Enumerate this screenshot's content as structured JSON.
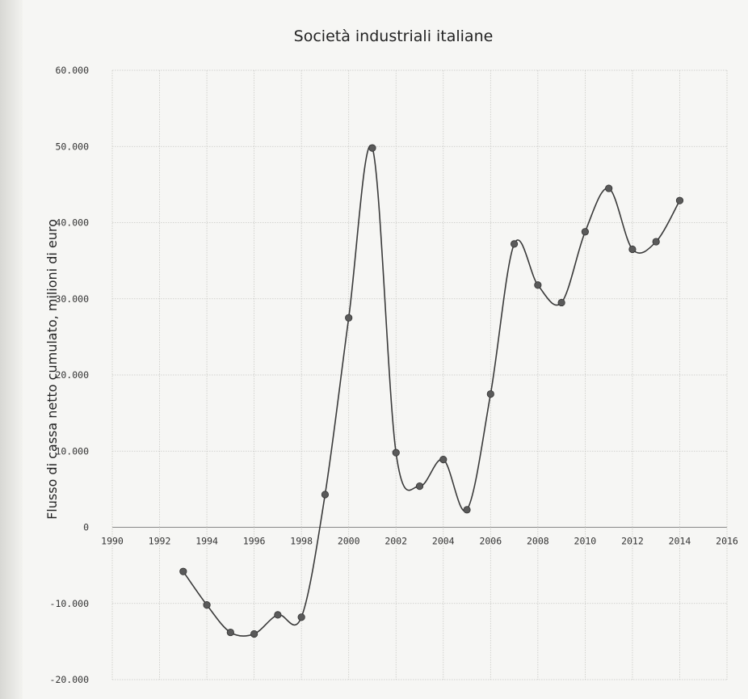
{
  "chart_data": {
    "type": "line",
    "title": "Società industriali italiane",
    "xlabel": "",
    "ylabel": "Flusso di cassa netto cumulato, milioni di euro",
    "xlim": [
      1990,
      2016
    ],
    "ylim": [
      -20000,
      60000
    ],
    "x_ticks": [
      "1990",
      "1992",
      "1994",
      "1996",
      "1998",
      "2000",
      "2002",
      "2004",
      "2006",
      "2008",
      "2010",
      "2012",
      "2014",
      "2016"
    ],
    "y_ticks": [
      "60.000",
      "50.000",
      "40.000",
      "30.000",
      "20.000",
      "10.000",
      "0",
      "-10.000",
      "-20.000"
    ],
    "y_tick_values": [
      60000,
      50000,
      40000,
      30000,
      20000,
      10000,
      0,
      -10000,
      -20000
    ],
    "x_tick_values": [
      1990,
      1992,
      1994,
      1996,
      1998,
      2000,
      2002,
      2004,
      2006,
      2008,
      2010,
      2012,
      2014,
      2016
    ],
    "grid": true,
    "smooth": true,
    "series": [
      {
        "x": [
          1993,
          1994,
          1995,
          1996,
          1997,
          1998,
          1999,
          2000,
          2001,
          2002,
          2003,
          2004,
          2005,
          2006,
          2007,
          2008,
          2009,
          2010,
          2011,
          2012,
          2013,
          2014
        ],
        "values": [
          -5800,
          -10200,
          -13800,
          -14000,
          -11500,
          -11800,
          4300,
          27500,
          49800,
          9800,
          5400,
          8900,
          2300,
          17500,
          37200,
          31800,
          29500,
          38800,
          44500,
          36500,
          37500,
          42900
        ]
      }
    ],
    "colors": {
      "line": "#3a3a3a",
      "marker": "#5a5a5a",
      "grid": "#c8c8c4"
    }
  }
}
